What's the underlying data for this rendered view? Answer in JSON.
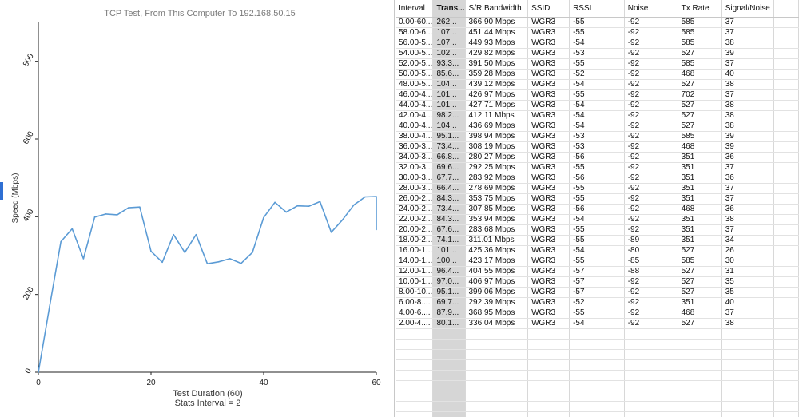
{
  "chart": {
    "title": "TCP Test,  From This Computer To 192.168.50.15",
    "ylabel": "Speed (Mbps)",
    "xlabel": "Test Duration (60)",
    "subtitle": "Stats Interval = 2"
  },
  "chart_data": {
    "type": "line",
    "title": "TCP Test,  From This Computer To 192.168.50.15",
    "xlabel": "Test Duration (60)",
    "ylabel": "Speed (Mbps)",
    "xlim": [
      0,
      60
    ],
    "ylim": [
      0,
      900
    ],
    "x_ticks": [
      "0",
      "20",
      "40",
      "60"
    ],
    "y_ticks": [
      "0",
      "200",
      "400",
      "600",
      "800"
    ],
    "grid": false,
    "color": "#5b9bd5",
    "series": [
      {
        "x": [
          0,
          2,
          4,
          6,
          8,
          10,
          12,
          14,
          16,
          18,
          20,
          22,
          24,
          26,
          28,
          30,
          32,
          34,
          36,
          38,
          40,
          42,
          44,
          46,
          48,
          50,
          52,
          54,
          56,
          58,
          60,
          60
        ],
        "values": [
          0,
          170,
          336,
          369,
          292,
          399,
          407,
          405,
          423,
          425,
          311,
          283,
          354,
          308,
          354,
          279,
          284,
          292,
          280,
          308,
          398,
          437,
          412,
          428,
          427,
          439,
          360,
          392,
          430,
          451,
          452,
          367
        ]
      }
    ]
  },
  "table": {
    "columns": [
      "Interval",
      "Trans...",
      "S/R Bandwidth",
      "SSID",
      "RSSI",
      "Noise",
      "Tx Rate",
      "Signal/Noise"
    ],
    "rows": [
      [
        "0.00-60...",
        "262...",
        "366.90 Mbps",
        "WGR3",
        "-55",
        "-92",
        "585",
        "37"
      ],
      [
        "58.00-6...",
        "107...",
        "451.44 Mbps",
        "WGR3",
        "-55",
        "-92",
        "585",
        "37"
      ],
      [
        "56.00-5...",
        "107...",
        "449.93 Mbps",
        "WGR3",
        "-54",
        "-92",
        "585",
        "38"
      ],
      [
        "54.00-5...",
        "102...",
        "429.82 Mbps",
        "WGR3",
        "-53",
        "-92",
        "527",
        "39"
      ],
      [
        "52.00-5...",
        "93.3...",
        "391.50 Mbps",
        "WGR3",
        "-55",
        "-92",
        "585",
        "37"
      ],
      [
        "50.00-5...",
        "85.6...",
        "359.28 Mbps",
        "WGR3",
        "-52",
        "-92",
        "468",
        "40"
      ],
      [
        "48.00-5...",
        "104...",
        "439.12 Mbps",
        "WGR3",
        "-54",
        "-92",
        "527",
        "38"
      ],
      [
        "46.00-4...",
        "101...",
        "426.97 Mbps",
        "WGR3",
        "-55",
        "-92",
        "702",
        "37"
      ],
      [
        "44.00-4...",
        "101...",
        "427.71 Mbps",
        "WGR3",
        "-54",
        "-92",
        "527",
        "38"
      ],
      [
        "42.00-4...",
        "98.2...",
        "412.11 Mbps",
        "WGR3",
        "-54",
        "-92",
        "527",
        "38"
      ],
      [
        "40.00-4...",
        "104...",
        "436.69 Mbps",
        "WGR3",
        "-54",
        "-92",
        "527",
        "38"
      ],
      [
        "38.00-4...",
        "95.1...",
        "398.94 Mbps",
        "WGR3",
        "-53",
        "-92",
        "585",
        "39"
      ],
      [
        "36.00-3...",
        "73.4...",
        "308.19 Mbps",
        "WGR3",
        "-53",
        "-92",
        "468",
        "39"
      ],
      [
        "34.00-3...",
        "66.8...",
        "280.27 Mbps",
        "WGR3",
        "-56",
        "-92",
        "351",
        "36"
      ],
      [
        "32.00-3...",
        "69.6...",
        "292.25 Mbps",
        "WGR3",
        "-55",
        "-92",
        "351",
        "37"
      ],
      [
        "30.00-3...",
        "67.7...",
        "283.92 Mbps",
        "WGR3",
        "-56",
        "-92",
        "351",
        "36"
      ],
      [
        "28.00-3...",
        "66.4...",
        "278.69 Mbps",
        "WGR3",
        "-55",
        "-92",
        "351",
        "37"
      ],
      [
        "26.00-2...",
        "84.3...",
        "353.75 Mbps",
        "WGR3",
        "-55",
        "-92",
        "351",
        "37"
      ],
      [
        "24.00-2...",
        "73.4...",
        "307.85 Mbps",
        "WGR3",
        "-56",
        "-92",
        "468",
        "36"
      ],
      [
        "22.00-2...",
        "84.3...",
        "353.94 Mbps",
        "WGR3",
        "-54",
        "-92",
        "351",
        "38"
      ],
      [
        "20.00-2...",
        "67.6...",
        "283.68 Mbps",
        "WGR3",
        "-55",
        "-92",
        "351",
        "37"
      ],
      [
        "18.00-2...",
        "74.1...",
        "311.01 Mbps",
        "WGR3",
        "-55",
        "-89",
        "351",
        "34"
      ],
      [
        "16.00-1...",
        "101...",
        "425.36 Mbps",
        "WGR3",
        "-54",
        "-80",
        "527",
        "26"
      ],
      [
        "14.00-1...",
        "100...",
        "423.17 Mbps",
        "WGR3",
        "-55",
        "-85",
        "585",
        "30"
      ],
      [
        "12.00-1...",
        "96.4...",
        "404.55 Mbps",
        "WGR3",
        "-57",
        "-88",
        "527",
        "31"
      ],
      [
        "10.00-1...",
        "97.0...",
        "406.97 Mbps",
        "WGR3",
        "-57",
        "-92",
        "527",
        "35"
      ],
      [
        "8.00-10...",
        "95.1...",
        "399.06 Mbps",
        "WGR3",
        "-57",
        "-92",
        "527",
        "35"
      ],
      [
        "6.00-8....",
        "69.7...",
        "292.39 Mbps",
        "WGR3",
        "-52",
        "-92",
        "351",
        "40"
      ],
      [
        "4.00-6....",
        "87.9...",
        "368.95 Mbps",
        "WGR3",
        "-55",
        "-92",
        "468",
        "37"
      ],
      [
        "2.00-4....",
        "80.1...",
        "336.04 Mbps",
        "WGR3",
        "-54",
        "-92",
        "527",
        "38"
      ]
    ],
    "empty_rows": 9
  }
}
